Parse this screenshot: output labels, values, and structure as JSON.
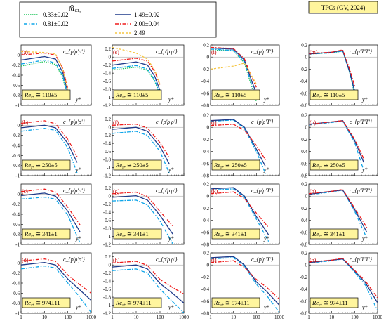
{
  "header": {
    "mach_symbol": "M̄",
    "mach_sub": "CL",
    "mach_subsub": "x",
    "tpc_box": "TPCs (GV, 2024)"
  },
  "legend": [
    {
      "name": "0.33±0.02",
      "color": "#22c55e",
      "dash": "1.5,1.5"
    },
    {
      "name": "0.81±0.02",
      "color": "#0ea5e9",
      "dash": "5,2,1.5,2"
    },
    {
      "name": "1.49±0.02",
      "color": "#1e3a8a",
      "dash": ""
    },
    {
      "name": "2.00±0.04",
      "color": "#ef1c1c",
      "dash": "5,2,1.5,2"
    },
    {
      "name": "2.49",
      "color": "#f5c542",
      "dash": "3,2"
    }
  ],
  "columns": [
    {
      "ylabel": "c_{p'ρ'ρ'}",
      "yticks": [
        "-1",
        "-0.8",
        "-0.6",
        "-0.4",
        "-0.2",
        "0"
      ]
    },
    {
      "ylabel": "c_{ρ'ρ'ρ'}",
      "yticks": [
        "-1.2",
        "-1",
        "-0.8",
        "-0.6",
        "-0.4",
        "-0.2",
        "0",
        "0.2"
      ]
    },
    {
      "ylabel": "c_{p'ρ'T'}",
      "yticks": [
        "-0.8",
        "-0.6",
        "-0.4",
        "-0.2",
        "0",
        "0.2"
      ]
    },
    {
      "ylabel": "c_{p'T'T'}",
      "yticks": [
        "-0.8",
        "-0.6",
        "-0.4",
        "-0.2",
        "0",
        "0.2"
      ]
    }
  ],
  "rows": [
    {
      "re_label": "Re",
      "re_sub": "τ*",
      "re_value": " ≅ 110±5"
    },
    {
      "re_label": "Re",
      "re_sub": "τ*",
      "re_value": " ≅ 250±5"
    },
    {
      "re_label": "Re",
      "re_sub": "τ*",
      "re_value": " ≅ 341±1"
    },
    {
      "re_label": "Re",
      "re_sub": "τ*",
      "re_value": " ≅ 974±11"
    }
  ],
  "panel_letters": [
    [
      "(a)",
      "(e)",
      "(i)",
      "(m)"
    ],
    [
      "(b)",
      "(f)",
      "(j)",
      "(n)"
    ],
    [
      "(c)",
      "(g)",
      "(k)",
      "(o)"
    ],
    [
      "(d)",
      "(h)",
      "(l)",
      "(p)"
    ]
  ],
  "x_axis": {
    "label": "y*",
    "scale": "log",
    "ticks": [
      "1",
      "10",
      "100",
      "1000"
    ],
    "range": [
      1,
      1000
    ]
  },
  "chart_data": [
    {
      "type": "line",
      "panel": "(a)",
      "ylim": [
        -1,
        0.2
      ],
      "x": [
        1,
        10,
        30,
        60,
        100
      ],
      "series": [
        {
          "name": "0.33±0.02",
          "values": [
            -0.22,
            -0.13,
            -0.19,
            -0.44,
            -0.86
          ]
        },
        {
          "name": "0.81±0.02",
          "values": [
            -0.18,
            -0.1,
            -0.16,
            -0.41,
            -0.83
          ]
        },
        {
          "name": "1.49±0.02",
          "values": [
            -0.1,
            -0.03,
            -0.08,
            -0.34,
            -0.74
          ]
        },
        {
          "name": "2.00±0.04",
          "values": [
            0.0,
            0.04,
            0.0,
            -0.26,
            -0.67
          ]
        },
        {
          "name": "2.49",
          "values": [
            0.07,
            0.05,
            0.02,
            -0.28,
            -0.7
          ]
        }
      ]
    },
    {
      "type": "line",
      "panel": "(e)",
      "ylim": [
        -1.2,
        0.3
      ],
      "x": [
        1,
        10,
        30,
        60,
        100
      ],
      "series": [
        {
          "name": "0.33±0.02",
          "values": [
            -0.32,
            -0.25,
            -0.33,
            -0.6,
            -0.95
          ]
        },
        {
          "name": "0.81±0.02",
          "values": [
            -0.28,
            -0.21,
            -0.3,
            -0.57,
            -0.92
          ]
        },
        {
          "name": "1.49±0.02",
          "values": [
            -0.2,
            -0.12,
            -0.2,
            -0.48,
            -0.83
          ]
        },
        {
          "name": "2.00±0.04",
          "values": [
            -0.1,
            -0.03,
            -0.1,
            -0.36,
            -0.7
          ]
        },
        {
          "name": "2.49",
          "values": [
            0.24,
            0.1,
            -0.05,
            -0.33,
            -0.68
          ]
        }
      ]
    },
    {
      "type": "line",
      "panel": "(i)",
      "ylim": [
        -0.8,
        0.2
      ],
      "x": [
        1,
        10,
        30,
        60,
        100
      ],
      "series": [
        {
          "name": "0.33±0.02",
          "values": [
            0.12,
            0.1,
            -0.1,
            -0.47,
            -0.74
          ]
        },
        {
          "name": "0.81±0.02",
          "values": [
            0.13,
            0.11,
            -0.08,
            -0.44,
            -0.7
          ]
        },
        {
          "name": "1.49±0.02",
          "values": [
            0.15,
            0.13,
            -0.05,
            -0.38,
            -0.6
          ]
        },
        {
          "name": "2.00±0.04",
          "values": [
            0.16,
            0.14,
            -0.03,
            -0.32,
            -0.5
          ]
        },
        {
          "name": "2.49",
          "values": [
            -0.2,
            -0.15,
            -0.1,
            -0.3,
            -0.45
          ]
        }
      ]
    },
    {
      "type": "line",
      "panel": "(m)",
      "ylim": [
        -0.8,
        0.2
      ],
      "x": [
        1,
        10,
        30,
        60,
        100
      ],
      "series": [
        {
          "name": "0.33±0.02",
          "values": [
            0.05,
            0.07,
            0.1,
            -0.25,
            -0.62
          ]
        },
        {
          "name": "0.81±0.02",
          "values": [
            0.05,
            0.07,
            0.1,
            -0.25,
            -0.6
          ]
        },
        {
          "name": "1.49±0.02",
          "values": [
            0.05,
            0.08,
            0.11,
            -0.24,
            -0.56
          ]
        },
        {
          "name": "2.00±0.04",
          "values": [
            0.06,
            0.08,
            0.12,
            -0.2,
            -0.48
          ]
        }
      ]
    },
    {
      "type": "line",
      "panel": "(b)",
      "ylim": [
        -1,
        0.2
      ],
      "x": [
        1,
        10,
        30,
        100,
        250
      ],
      "series": [
        {
          "name": "0.81±0.02",
          "values": [
            -0.12,
            -0.06,
            -0.1,
            -0.45,
            -0.95
          ]
        },
        {
          "name": "1.49±0.02",
          "values": [
            -0.05,
            0.0,
            -0.05,
            -0.36,
            -0.74
          ]
        },
        {
          "name": "2.00±0.04",
          "values": [
            0.04,
            0.09,
            0.03,
            -0.28,
            -0.62
          ]
        }
      ]
    },
    {
      "type": "line",
      "panel": "(f)",
      "ylim": [
        -1.2,
        0.3
      ],
      "x": [
        1,
        10,
        30,
        100,
        250
      ],
      "series": [
        {
          "name": "0.81±0.02",
          "values": [
            -0.15,
            -0.1,
            -0.2,
            -0.6,
            -1.15
          ]
        },
        {
          "name": "1.49±0.02",
          "values": [
            -0.05,
            0.0,
            -0.1,
            -0.48,
            -0.92
          ]
        },
        {
          "name": "2.00±0.04",
          "values": [
            0.05,
            0.08,
            -0.02,
            -0.38,
            -0.76
          ]
        }
      ]
    },
    {
      "type": "line",
      "panel": "(j)",
      "ylim": [
        -0.8,
        0.2
      ],
      "x": [
        1,
        10,
        30,
        100,
        250
      ],
      "series": [
        {
          "name": "0.81±0.02",
          "values": [
            0.1,
            0.12,
            -0.02,
            -0.4,
            -0.77
          ]
        },
        {
          "name": "1.49±0.02",
          "values": [
            0.11,
            0.13,
            0.0,
            -0.36,
            -0.65
          ]
        },
        {
          "name": "2.00±0.04",
          "values": [
            0.03,
            0.05,
            -0.05,
            -0.3,
            -0.54
          ]
        }
      ]
    },
    {
      "type": "line",
      "panel": "(n)",
      "ylim": [
        -0.8,
        0.2
      ],
      "x": [
        1,
        10,
        30,
        100,
        250
      ],
      "series": [
        {
          "name": "0.81±0.02",
          "values": [
            0.04,
            0.08,
            0.1,
            -0.25,
            -0.72
          ]
        },
        {
          "name": "1.49±0.02",
          "values": [
            0.05,
            0.09,
            0.11,
            -0.22,
            -0.58
          ]
        },
        {
          "name": "2.00±0.04",
          "values": [
            0.05,
            0.09,
            0.11,
            -0.2,
            -0.52
          ]
        }
      ]
    },
    {
      "type": "line",
      "panel": "(c)",
      "ylim": [
        -1,
        0.2
      ],
      "x": [
        1,
        10,
        30,
        100,
        340
      ],
      "series": [
        {
          "name": "0.81±0.02",
          "values": [
            -0.1,
            -0.06,
            -0.1,
            -0.42,
            -0.98
          ]
        },
        {
          "name": "1.49±0.02",
          "values": [
            -0.03,
            0.02,
            -0.04,
            -0.34,
            -0.76
          ]
        },
        {
          "name": "2.00±0.04",
          "values": [
            0.05,
            0.1,
            0.04,
            -0.26,
            -0.62
          ]
        }
      ]
    },
    {
      "type": "line",
      "panel": "(g)",
      "ylim": [
        -1.2,
        0.3
      ],
      "x": [
        1,
        10,
        30,
        100,
        340
      ],
      "series": [
        {
          "name": "0.81±0.02",
          "values": [
            -0.12,
            -0.1,
            -0.22,
            -0.62,
            -1.18
          ]
        },
        {
          "name": "1.49±0.02",
          "values": [
            -0.03,
            0.01,
            -0.1,
            -0.48,
            -0.94
          ]
        },
        {
          "name": "2.00±0.04",
          "values": [
            0.06,
            0.1,
            -0.01,
            -0.38,
            -0.74
          ]
        }
      ]
    },
    {
      "type": "line",
      "panel": "(k)",
      "ylim": [
        -0.8,
        0.2
      ],
      "x": [
        1,
        10,
        30,
        100,
        340
      ],
      "series": [
        {
          "name": "0.81±0.02",
          "values": [
            0.1,
            0.12,
            -0.02,
            -0.38,
            -0.75
          ]
        },
        {
          "name": "1.49±0.02",
          "values": [
            0.12,
            0.14,
            0.0,
            -0.34,
            -0.64
          ]
        },
        {
          "name": "2.00±0.04",
          "values": [
            0.04,
            0.07,
            -0.04,
            -0.28,
            -0.52
          ]
        }
      ]
    },
    {
      "type": "line",
      "panel": "(o)",
      "ylim": [
        -0.8,
        0.2
      ],
      "x": [
        1,
        10,
        30,
        100,
        340
      ],
      "series": [
        {
          "name": "0.81±0.02",
          "values": [
            0.02,
            0.07,
            0.1,
            -0.25,
            -0.7
          ]
        },
        {
          "name": "1.49±0.02",
          "values": [
            0.03,
            0.08,
            0.1,
            -0.22,
            -0.6
          ]
        },
        {
          "name": "2.00±0.04",
          "values": [
            0.04,
            0.08,
            0.11,
            -0.2,
            -0.52
          ]
        }
      ]
    },
    {
      "type": "line",
      "panel": "(d)",
      "ylim": [
        -1,
        0.2
      ],
      "x": [
        1,
        10,
        30,
        100,
        300,
        970
      ],
      "series": [
        {
          "name": "0.81±0.02",
          "values": [
            -0.12,
            -0.06,
            -0.1,
            -0.4,
            -0.66,
            -0.98
          ]
        },
        {
          "name": "1.49±0.02",
          "values": [
            -0.04,
            0.01,
            -0.04,
            -0.32,
            -0.52,
            -0.74
          ]
        },
        {
          "name": "2.00±0.04",
          "values": [
            0.04,
            0.08,
            0.03,
            -0.24,
            -0.42,
            -0.6
          ]
        }
      ]
    },
    {
      "type": "line",
      "panel": "(h)",
      "ylim": [
        -1.2,
        0.3
      ],
      "x": [
        1,
        10,
        30,
        100,
        300,
        970
      ],
      "series": [
        {
          "name": "0.81±0.02",
          "values": [
            -0.14,
            -0.1,
            -0.2,
            -0.6,
            -0.88,
            -1.18
          ]
        },
        {
          "name": "1.49±0.02",
          "values": [
            -0.05,
            0.0,
            -0.1,
            -0.46,
            -0.68,
            -0.94
          ]
        },
        {
          "name": "2.00±0.04",
          "values": [
            0.05,
            0.09,
            -0.01,
            -0.36,
            -0.54,
            -0.72
          ]
        }
      ]
    },
    {
      "type": "line",
      "panel": "(l)",
      "ylim": [
        -0.8,
        0.2
      ],
      "x": [
        1,
        10,
        30,
        100,
        300,
        970
      ],
      "series": [
        {
          "name": "0.81±0.02",
          "values": [
            0.1,
            0.12,
            -0.02,
            -0.32,
            -0.52,
            -0.78
          ]
        },
        {
          "name": "1.49±0.02",
          "values": [
            0.12,
            0.14,
            0.0,
            -0.28,
            -0.45,
            -0.66
          ]
        },
        {
          "name": "2.00±0.04",
          "values": [
            0.04,
            0.07,
            -0.04,
            -0.24,
            -0.38,
            -0.56
          ]
        }
      ]
    },
    {
      "type": "line",
      "panel": "(p)",
      "ylim": [
        -0.8,
        0.2
      ],
      "x": [
        1,
        10,
        30,
        100,
        300,
        970
      ],
      "series": [
        {
          "name": "0.81±0.02",
          "values": [
            0.03,
            0.07,
            0.1,
            -0.12,
            -0.34,
            -0.75
          ]
        },
        {
          "name": "1.49±0.02",
          "values": [
            0.04,
            0.08,
            0.1,
            -0.1,
            -0.3,
            -0.62
          ]
        },
        {
          "name": "2.00±0.04",
          "values": [
            0.05,
            0.08,
            0.11,
            -0.09,
            -0.27,
            -0.54
          ]
        }
      ]
    }
  ]
}
